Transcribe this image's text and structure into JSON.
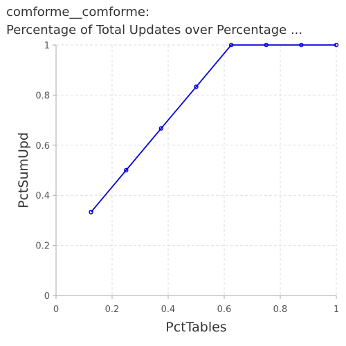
{
  "chart": {
    "title_line1": "comforme__comforme:",
    "title_line2": "Percentage of Total Updates over Percentage ..."
  },
  "colors": {
    "series": "#0000dd",
    "grid": "#dddddd",
    "axis": "#aaaaaa"
  },
  "chart_data": {
    "type": "line",
    "title": "comforme__comforme: Percentage of Total Updates over Percentage ...",
    "xlabel": "PctTables",
    "ylabel": "PctSumUpd",
    "xlim": [
      0,
      1
    ],
    "ylim": [
      0,
      1
    ],
    "xticks": [
      "0",
      "0.2",
      "0.4",
      "0.6",
      "0.8",
      "1"
    ],
    "yticks": [
      "0",
      "0.2",
      "0.4",
      "0.6",
      "0.8",
      "1"
    ],
    "grid": true,
    "legend": "none",
    "series": [
      {
        "x": [
          0.125,
          0.25,
          0.375,
          0.5,
          0.625,
          0.75,
          0.875,
          1.0
        ],
        "y": [
          0.333,
          0.5,
          0.667,
          0.833,
          1.0,
          1.0,
          1.0,
          1.0
        ]
      }
    ]
  }
}
